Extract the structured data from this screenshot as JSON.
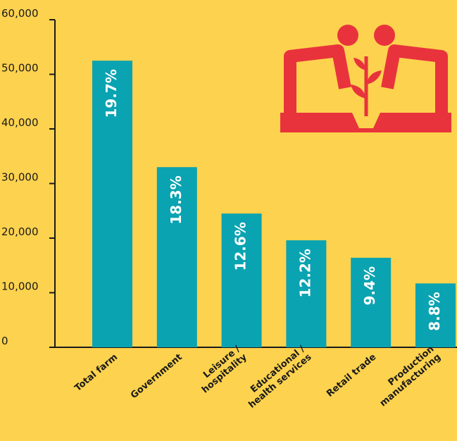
{
  "chart_data": {
    "type": "bar",
    "categories": [
      "Total farm",
      "Government",
      "Leisure /\nhospitality",
      "Educational /\nhealth services",
      "Retail trade",
      "Production\nmanufacturing"
    ],
    "values": [
      52500,
      33000,
      24500,
      19600,
      16400,
      11700
    ],
    "bar_labels": [
      "19.7%",
      "18.3%",
      "12.6%",
      "12.2%",
      "9.4%",
      "8.8%"
    ],
    "color": "#0aa3b1",
    "ylim": [
      0,
      60000
    ],
    "yticks": [
      0,
      {
        "value": 10000,
        "label": "10,000"
      },
      {
        "value": 20000,
        "label": "20,000"
      },
      {
        "value": 30000,
        "label": "30,000"
      },
      {
        "value": 40000,
        "label": "40,000"
      },
      {
        "value": 50000,
        "label": "50,000"
      },
      {
        "value": 60000,
        "label": "60,000"
      }
    ]
  }
}
